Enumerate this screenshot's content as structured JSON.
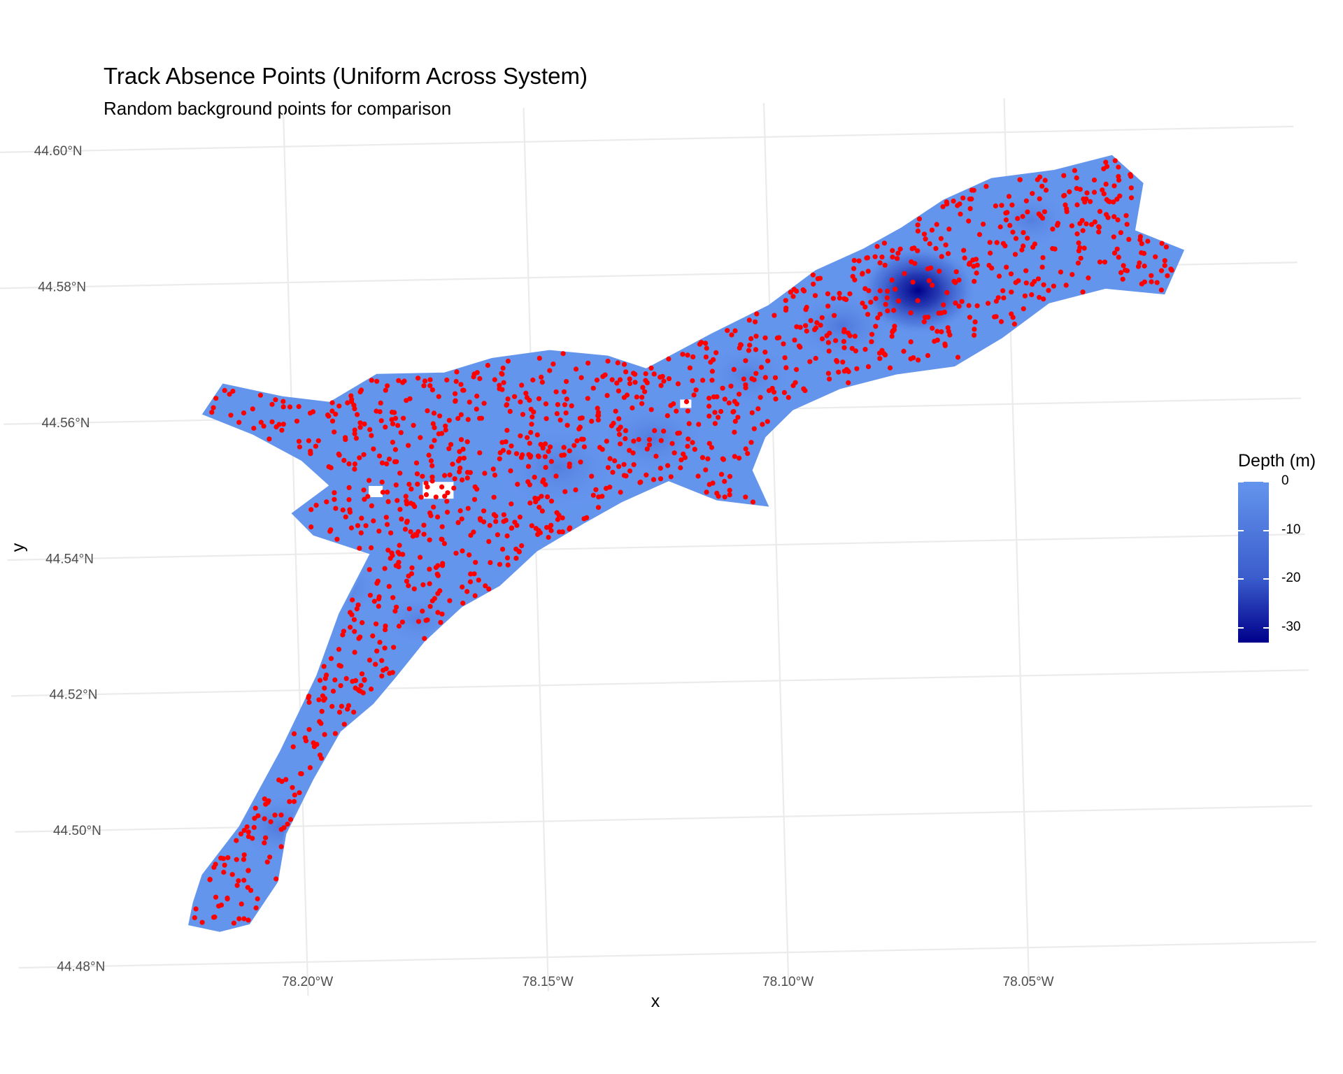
{
  "title": "Track Absence Points (Uniform Across System)",
  "subtitle": "Random background points for comparison",
  "chart_data": {
    "type": "scatter",
    "xlabel": "x",
    "ylabel": "y",
    "lat_ticks": [
      "44.60°N",
      "44.58°N",
      "44.56°N",
      "44.54°N",
      "44.52°N",
      "44.50°N",
      "44.48°N"
    ],
    "lon_ticks": [
      "78.20°W",
      "78.15°W",
      "78.10°W",
      "78.05°W"
    ],
    "lat_tick_values": [
      44.6,
      44.58,
      44.56,
      44.54,
      44.52,
      44.5,
      44.48
    ],
    "lon_tick_values": [
      -78.2,
      -78.15,
      -78.1,
      -78.05
    ],
    "xlim": [
      -78.24,
      -78.01
    ],
    "ylim": [
      44.478,
      44.602
    ],
    "grid": true,
    "raster_name": "Depth (m)",
    "legend": {
      "title": "Depth (m)",
      "labels": [
        "0",
        "-10",
        "-20",
        "-30"
      ],
      "values": [
        0,
        -10,
        -20,
        -30
      ],
      "range": [
        -33,
        0
      ],
      "colors": [
        "#6495ed",
        "#3a5ccc",
        "#00008b"
      ],
      "placement": "right"
    },
    "point_color": "#ff0000",
    "point_series": "absence points",
    "basin_polygon": [
      [
        -78.223,
        44.489
      ],
      [
        -78.221,
        44.493
      ],
      [
        -78.213,
        44.5
      ],
      [
        -78.204,
        44.511
      ],
      [
        -78.196,
        44.522
      ],
      [
        -78.191,
        44.531
      ],
      [
        -78.184,
        44.54
      ],
      [
        -78.196,
        44.543
      ],
      [
        -78.2,
        44.546
      ],
      [
        -78.192,
        44.55
      ],
      [
        -78.198,
        44.554
      ],
      [
        -78.208,
        44.558
      ],
      [
        -78.218,
        44.561
      ],
      [
        -78.214,
        44.565
      ],
      [
        -78.202,
        44.563
      ],
      [
        -78.192,
        44.562
      ],
      [
        -78.182,
        44.566
      ],
      [
        -78.168,
        44.566
      ],
      [
        -78.158,
        44.568
      ],
      [
        -78.146,
        44.569
      ],
      [
        -78.134,
        44.568
      ],
      [
        -78.126,
        44.566
      ],
      [
        -78.112,
        44.571
      ],
      [
        -78.1,
        44.575
      ],
      [
        -78.09,
        44.58
      ],
      [
        -78.08,
        44.583
      ],
      [
        -78.072,
        44.586
      ],
      [
        -78.063,
        44.59
      ],
      [
        -78.053,
        44.593
      ],
      [
        -78.04,
        44.594
      ],
      [
        -78.028,
        44.596
      ],
      [
        -78.022,
        44.592
      ],
      [
        -78.024,
        44.585
      ],
      [
        -78.014,
        44.582
      ],
      [
        -78.018,
        44.576
      ],
      [
        -78.03,
        44.577
      ],
      [
        -78.042,
        44.575
      ],
      [
        -78.052,
        44.57
      ],
      [
        -78.062,
        44.566
      ],
      [
        -78.074,
        44.565
      ],
      [
        -78.086,
        44.563
      ],
      [
        -78.096,
        44.56
      ],
      [
        -78.102,
        44.556
      ],
      [
        -78.105,
        44.551
      ],
      [
        -78.102,
        44.546
      ],
      [
        -78.112,
        44.547
      ],
      [
        -78.122,
        44.55
      ],
      [
        -78.132,
        44.547
      ],
      [
        -78.14,
        44.544
      ],
      [
        -78.15,
        44.54
      ],
      [
        -78.158,
        44.535
      ],
      [
        -78.166,
        44.532
      ],
      [
        -78.174,
        44.527
      ],
      [
        -78.18,
        44.522
      ],
      [
        -78.185,
        44.518
      ],
      [
        -78.192,
        44.514
      ],
      [
        -78.198,
        44.507
      ],
      [
        -78.204,
        44.499
      ],
      [
        -78.206,
        44.492
      ],
      [
        -78.212,
        44.486
      ],
      [
        -78.218,
        44.485
      ],
      [
        -78.224,
        44.486
      ]
    ],
    "deep_spot": [
      -78.069,
      44.577
    ],
    "n_points": 1300
  }
}
